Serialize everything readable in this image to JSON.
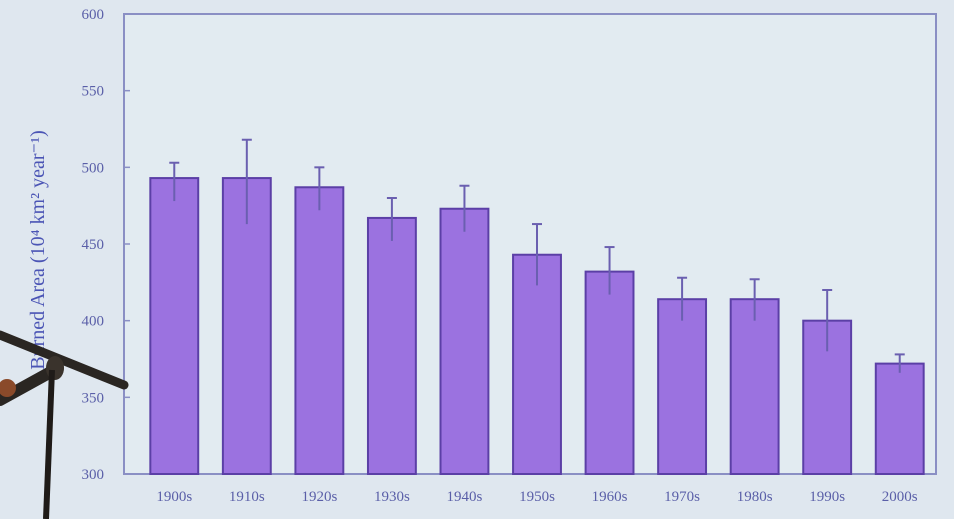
{
  "chart_data": {
    "type": "bar",
    "title": "",
    "xlabel": "",
    "ylabel": "Burned Area (10⁴ km² year⁻¹)",
    "ylim": [
      300,
      600
    ],
    "yticks": [
      "300",
      "350",
      "400",
      "450",
      "500",
      "550",
      "600"
    ],
    "categories": [
      "1900s",
      "1910s",
      "1920s",
      "1930s",
      "1940s",
      "1950s",
      "1960s",
      "1970s",
      "1980s",
      "1990s",
      "2000s"
    ],
    "values": [
      493,
      493,
      487,
      467,
      473,
      443,
      432,
      414,
      414,
      400,
      372
    ],
    "error_upper": [
      503,
      518,
      500,
      480,
      488,
      463,
      448,
      428,
      427,
      420,
      378
    ],
    "error_lower": [
      478,
      463,
      472,
      452,
      458,
      423,
      417,
      400,
      400,
      380,
      366
    ],
    "grid": false,
    "colors": {
      "bar_fill": "#9b72e0",
      "bar_stroke": "#5b3fa6",
      "error_bar": "#6a5fb0",
      "frame": "#8a8fc4",
      "background": "#e2ebf1"
    }
  }
}
